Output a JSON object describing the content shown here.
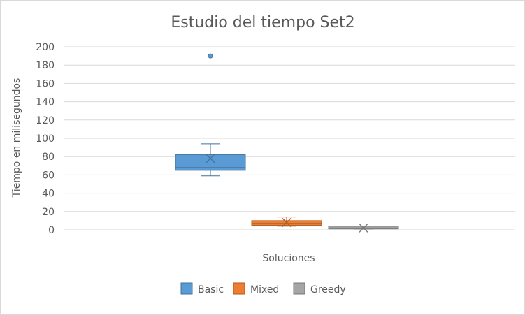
{
  "chart_data": {
    "type": "boxplot",
    "title": "Estudio del tiempo Set2",
    "xlabel": "Soluciones",
    "ylabel": "Tiempo en milisegundos",
    "ylim": [
      0,
      200
    ],
    "yticks": [
      0,
      20,
      40,
      60,
      80,
      100,
      120,
      140,
      160,
      180,
      200
    ],
    "grid": true,
    "legend_position": "bottom",
    "series": [
      {
        "name": "Basic",
        "color": "#5b9bd5",
        "edge": "#41719c",
        "min": 59,
        "q1": 65,
        "median": 68,
        "q3": 82,
        "max": 94,
        "mean": 78,
        "outliers": [
          190
        ]
      },
      {
        "name": "Mixed",
        "color": "#ed7d31",
        "edge": "#ae5a21",
        "min": 4,
        "q1": 5,
        "median": 7,
        "q3": 10,
        "max": 14,
        "mean": 8,
        "outliers": []
      },
      {
        "name": "Greedy",
        "color": "#a5a5a5",
        "edge": "#787878",
        "min": 1,
        "q1": 1,
        "median": 2,
        "q3": 4,
        "max": 4,
        "mean": 2,
        "outliers": []
      }
    ]
  }
}
